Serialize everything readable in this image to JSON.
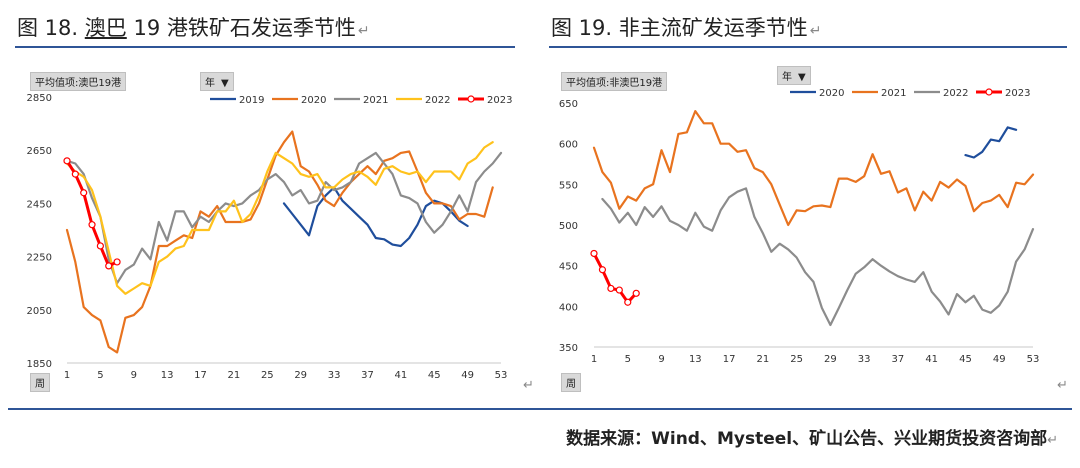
{
  "figures": {
    "left_number": "图 18.",
    "left_underlined": "澳巴",
    "left_rest": "19 港铁矿石发运季节性",
    "right": "图 19.  非主流矿发运季节性"
  },
  "source": "数据来源：Wind、Mysteel、矿山公告、兴业期货投资咨询部",
  "chart_data": [
    {
      "type": "line",
      "field_label": "平均值项:澳巴19港",
      "filter_label": "年",
      "axis_label": "周",
      "ylim": [
        1850,
        2850
      ],
      "yticks": [
        1850,
        2050,
        2250,
        2450,
        2650,
        2850
      ],
      "xticks": [
        1,
        5,
        9,
        13,
        17,
        21,
        25,
        29,
        33,
        37,
        41,
        45,
        49,
        53
      ],
      "xlim": [
        1,
        53
      ],
      "series": [
        {
          "name": "2019",
          "color": "#1f4e9c",
          "start": 27,
          "values": [
            2450,
            2410,
            2370,
            2330,
            2440,
            2480,
            2510,
            2460,
            2430,
            2400,
            2370,
            2320,
            2315,
            2295,
            2290,
            2320,
            2370,
            2440,
            2460,
            2450,
            2420,
            2385,
            2365
          ]
        },
        {
          "name": "2020",
          "color": "#e8731f",
          "start": 1,
          "values": [
            2350,
            2230,
            2060,
            2030,
            2010,
            1910,
            1890,
            2020,
            2030,
            2060,
            2140,
            2290,
            2290,
            2310,
            2330,
            2320,
            2420,
            2400,
            2440,
            2380,
            2380,
            2380,
            2390,
            2450,
            2540,
            2630,
            2680,
            2720,
            2590,
            2570,
            2520,
            2460,
            2440,
            2490,
            2530,
            2560,
            2590,
            2560,
            2610,
            2620,
            2640,
            2645,
            2570,
            2490,
            2450,
            2450,
            2440,
            2390,
            2410,
            2410,
            2400,
            2510
          ]
        },
        {
          "name": "2021",
          "color": "#8c8c8c",
          "start": 1,
          "values": [
            2610,
            2600,
            2560,
            2470,
            2400,
            2240,
            2150,
            2200,
            2220,
            2280,
            2240,
            2380,
            2310,
            2420,
            2420,
            2360,
            2400,
            2380,
            2420,
            2450,
            2440,
            2450,
            2480,
            2500,
            2540,
            2560,
            2530,
            2480,
            2500,
            2450,
            2460,
            2530,
            2500,
            2510,
            2530,
            2600,
            2620,
            2640,
            2600,
            2560,
            2480,
            2470,
            2450,
            2380,
            2340,
            2370,
            2420,
            2480,
            2420,
            2530,
            2570,
            2600,
            2640
          ]
        },
        {
          "name": "2022",
          "color": "#ffc21c",
          "start": 1,
          "values": [
            2600,
            2570,
            2550,
            2500,
            2400,
            2270,
            2140,
            2110,
            2130,
            2150,
            2140,
            2230,
            2250,
            2280,
            2290,
            2350,
            2350,
            2350,
            2420,
            2420,
            2460,
            2380,
            2410,
            2480,
            2570,
            2640,
            2620,
            2600,
            2560,
            2550,
            2560,
            2510,
            2510,
            2540,
            2560,
            2570,
            2550,
            2520,
            2580,
            2590,
            2570,
            2560,
            2570,
            2530,
            2570,
            2570,
            2570,
            2540,
            2600,
            2620,
            2660,
            2680
          ]
        },
        {
          "name": "2023",
          "color": "#ff0000",
          "start": 1,
          "highlight": true,
          "values": [
            2610,
            2560,
            2490,
            2370,
            2290,
            2215,
            2230
          ]
        }
      ]
    },
    {
      "type": "line",
      "field_label": "平均值项:非澳巴19港",
      "filter_label": "年",
      "axis_label": "周",
      "ylim": [
        350,
        650
      ],
      "yticks": [
        350,
        400,
        450,
        500,
        550,
        600,
        650
      ],
      "xticks": [
        1,
        5,
        9,
        13,
        17,
        21,
        25,
        29,
        33,
        37,
        41,
        45,
        49,
        53
      ],
      "xlim": [
        1,
        53
      ],
      "series": [
        {
          "name": "2020",
          "color": "#1f4e9c",
          "start": 45,
          "values": [
            586,
            583,
            590,
            605,
            603,
            620,
            617
          ]
        },
        {
          "name": "2021",
          "color": "#e8731f",
          "start": 1,
          "values": [
            595,
            565,
            552,
            520,
            535,
            530,
            545,
            550,
            592,
            565,
            612,
            614,
            640,
            625,
            625,
            600,
            600,
            590,
            592,
            570,
            565,
            550,
            525,
            500,
            518,
            517,
            523,
            524,
            522,
            557,
            557,
            553,
            560,
            587,
            563,
            566,
            540,
            545,
            518,
            541,
            530,
            553,
            546,
            556,
            548,
            517,
            527,
            530,
            537,
            522,
            552,
            550,
            562
          ]
        },
        {
          "name": "2022",
          "color": "#8c8c8c",
          "start": 2,
          "values": [
            532,
            520,
            503,
            515,
            500,
            522,
            510,
            523,
            505,
            500,
            493,
            515,
            498,
            493,
            518,
            534,
            541,
            545,
            510,
            490,
            467,
            477,
            470,
            460,
            442,
            430,
            398,
            377,
            398,
            420,
            440,
            448,
            458,
            450,
            443,
            437,
            433,
            430,
            442,
            418,
            406,
            390,
            415,
            405,
            413,
            396,
            392,
            401,
            418,
            455,
            470,
            495
          ]
        },
        {
          "name": "2023",
          "color": "#ff0000",
          "start": 1,
          "highlight": true,
          "values": [
            465,
            445,
            422,
            420,
            405,
            416
          ]
        }
      ]
    }
  ]
}
